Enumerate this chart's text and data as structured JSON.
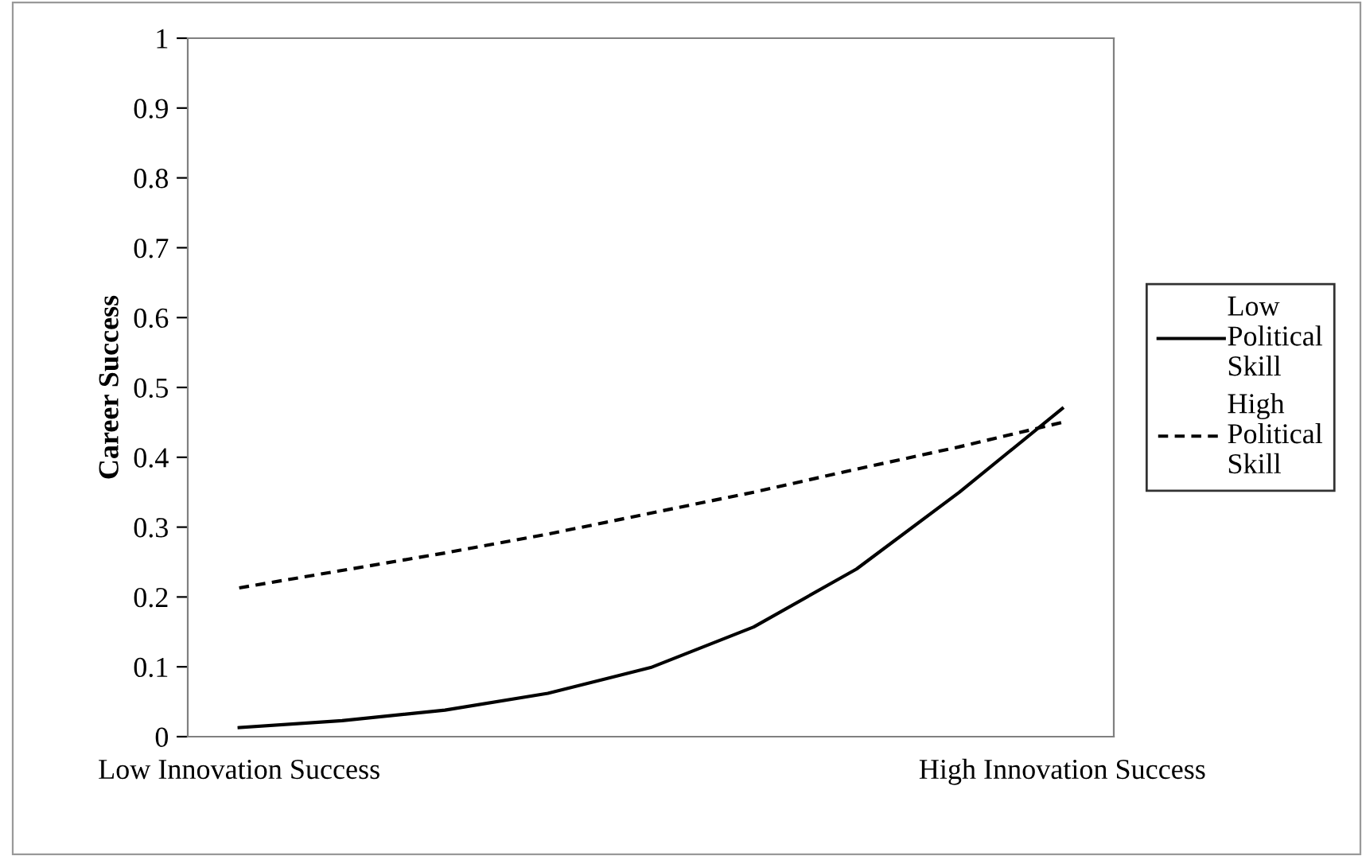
{
  "chart_data": {
    "type": "line",
    "ylabel": "Career Success",
    "categories": [
      "Low Innovation Success",
      null,
      null,
      null,
      null,
      null,
      null,
      null,
      "High Innovation Success"
    ],
    "series": [
      {
        "name": "Low Political Skill",
        "color": "#000000",
        "line_style": "solid",
        "values": [
          0.013,
          0.023,
          0.038,
          0.062,
          0.099,
          0.157,
          0.24,
          0.35,
          0.47
        ]
      },
      {
        "name": "High Political Skill",
        "color": "#000000",
        "line_style": "dashed",
        "values": [
          0.213,
          0.238,
          0.263,
          0.29,
          0.32,
          0.35,
          0.383,
          0.415,
          0.45
        ]
      }
    ],
    "ylim": [
      0,
      1
    ],
    "yticks": [
      0,
      0.1,
      0.2,
      0.3,
      0.4,
      0.5,
      0.6,
      0.7,
      0.8,
      0.9,
      1
    ],
    "grid": false,
    "legend": "right",
    "marker": "none"
  }
}
